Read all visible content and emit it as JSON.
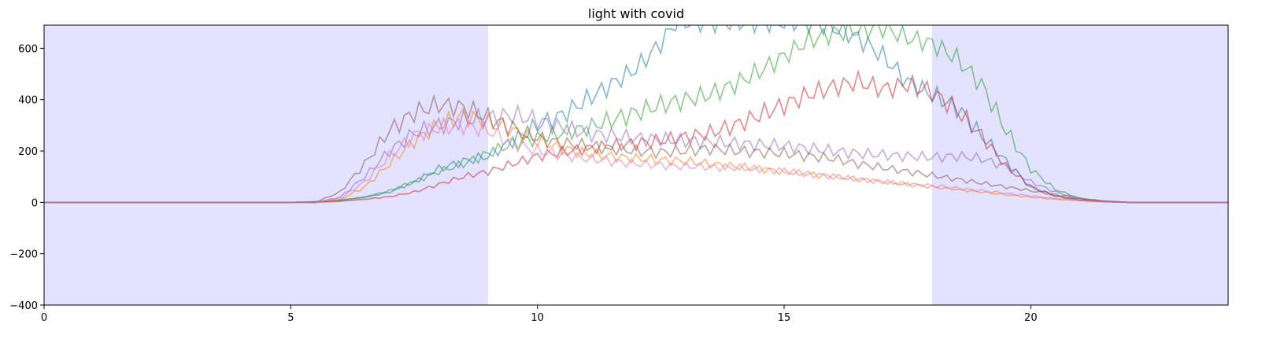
{
  "chart_data": {
    "type": "line",
    "title": "light with covid",
    "xlabel": "",
    "ylabel": "",
    "xlim": [
      0,
      24
    ],
    "ylim": [
      -400,
      690
    ],
    "xticks": [
      0,
      5,
      10,
      15,
      20
    ],
    "yticks": [
      -400,
      -200,
      0,
      200,
      400,
      600
    ],
    "grid": false,
    "legend": "none",
    "shaded_regions": [
      {
        "x0": 0,
        "x1": 9,
        "color": "#e3e3ff"
      },
      {
        "x0": 18,
        "x1": 24,
        "color": "#e3e3ff"
      }
    ],
    "series": [
      {
        "color": "#1f77b4",
        "points": [
          [
            0,
            0
          ],
          [
            5,
            0
          ],
          [
            5.6,
            3
          ],
          [
            6,
            8
          ],
          [
            6.5,
            20
          ],
          [
            7,
            40
          ],
          [
            7.5,
            80
          ],
          [
            8,
            130
          ],
          [
            8.5,
            160
          ],
          [
            9,
            180
          ],
          [
            9.5,
            240
          ],
          [
            10,
            300
          ],
          [
            10.5,
            340
          ],
          [
            11,
            400
          ],
          [
            11.5,
            460
          ],
          [
            12,
            520
          ],
          [
            12.5,
            620
          ],
          [
            12.8,
            700
          ],
          [
            13,
            700
          ],
          [
            15.5,
            700
          ],
          [
            16,
            680
          ],
          [
            16.5,
            640
          ],
          [
            17,
            570
          ],
          [
            17.5,
            470
          ],
          [
            18,
            420
          ],
          [
            18.5,
            370
          ],
          [
            19,
            260
          ],
          [
            19.5,
            160
          ],
          [
            20,
            60
          ],
          [
            20.5,
            25
          ],
          [
            21,
            10
          ],
          [
            21.5,
            3
          ],
          [
            22,
            0
          ],
          [
            24,
            0
          ]
        ]
      },
      {
        "color": "#ff7f0e",
        "points": [
          [
            0,
            0
          ],
          [
            5.5,
            0
          ],
          [
            6,
            10
          ],
          [
            6.5,
            60
          ],
          [
            7,
            150
          ],
          [
            7.5,
            240
          ],
          [
            8,
            300
          ],
          [
            8.5,
            340
          ],
          [
            9,
            310
          ],
          [
            9.5,
            280
          ],
          [
            10,
            240
          ],
          [
            10.5,
            210
          ],
          [
            11,
            190
          ],
          [
            11.5,
            180
          ],
          [
            12,
            170
          ],
          [
            12.5,
            165
          ],
          [
            13,
            160
          ],
          [
            13.5,
            150
          ],
          [
            14,
            140
          ],
          [
            14.5,
            130
          ],
          [
            15,
            120
          ],
          [
            15.5,
            110
          ],
          [
            16,
            100
          ],
          [
            16.5,
            90
          ],
          [
            17,
            80
          ],
          [
            17.5,
            70
          ],
          [
            18,
            60
          ],
          [
            18.5,
            50
          ],
          [
            19,
            40
          ],
          [
            19.5,
            30
          ],
          [
            20,
            20
          ],
          [
            20.5,
            12
          ],
          [
            21,
            6
          ],
          [
            21.5,
            2
          ],
          [
            22,
            0
          ],
          [
            24,
            0
          ]
        ]
      },
      {
        "color": "#2ca02c",
        "points": [
          [
            0,
            0
          ],
          [
            5,
            0
          ],
          [
            5.6,
            3
          ],
          [
            6,
            8
          ],
          [
            6.5,
            20
          ],
          [
            7,
            45
          ],
          [
            7.5,
            80
          ],
          [
            8,
            120
          ],
          [
            8.5,
            150
          ],
          [
            9,
            190
          ],
          [
            9.5,
            230
          ],
          [
            10,
            250
          ],
          [
            10.5,
            270
          ],
          [
            11,
            290
          ],
          [
            11.5,
            320
          ],
          [
            12,
            350
          ],
          [
            12.5,
            380
          ],
          [
            13,
            400
          ],
          [
            13.5,
            420
          ],
          [
            14,
            460
          ],
          [
            14.5,
            510
          ],
          [
            15,
            570
          ],
          [
            15.5,
            630
          ],
          [
            16,
            660
          ],
          [
            16.5,
            670
          ],
          [
            17,
            680
          ],
          [
            17.5,
            640
          ],
          [
            18,
            620
          ],
          [
            18.5,
            560
          ],
          [
            19,
            460
          ],
          [
            19.5,
            280
          ],
          [
            20,
            130
          ],
          [
            20.5,
            50
          ],
          [
            21,
            15
          ],
          [
            21.5,
            4
          ],
          [
            22,
            0
          ],
          [
            24,
            0
          ]
        ]
      },
      {
        "color": "#d62728",
        "points": [
          [
            0,
            0
          ],
          [
            5.5,
            0
          ],
          [
            6,
            4
          ],
          [
            6.5,
            12
          ],
          [
            7,
            22
          ],
          [
            7.5,
            40
          ],
          [
            8,
            70
          ],
          [
            8.5,
            100
          ],
          [
            9,
            120
          ],
          [
            9.5,
            150
          ],
          [
            10,
            180
          ],
          [
            10.5,
            195
          ],
          [
            11,
            210
          ],
          [
            11.5,
            220
          ],
          [
            12,
            230
          ],
          [
            12.5,
            240
          ],
          [
            13,
            255
          ],
          [
            13.5,
            270
          ],
          [
            14,
            300
          ],
          [
            14.5,
            340
          ],
          [
            15,
            380
          ],
          [
            15.5,
            420
          ],
          [
            16,
            450
          ],
          [
            16.5,
            470
          ],
          [
            17,
            440
          ],
          [
            17.5,
            460
          ],
          [
            18,
            430
          ],
          [
            18.5,
            360
          ],
          [
            19,
            260
          ],
          [
            19.5,
            140
          ],
          [
            20,
            60
          ],
          [
            20.5,
            25
          ],
          [
            21,
            8
          ],
          [
            21.5,
            2
          ],
          [
            22,
            0
          ],
          [
            24,
            0
          ]
        ]
      },
      {
        "color": "#9467bd",
        "points": [
          [
            0,
            0
          ],
          [
            5.5,
            0
          ],
          [
            6,
            20
          ],
          [
            6.5,
            100
          ],
          [
            7,
            200
          ],
          [
            7.5,
            270
          ],
          [
            8,
            300
          ],
          [
            8.5,
            320
          ],
          [
            9,
            330
          ],
          [
            9.5,
            340
          ],
          [
            10,
            320
          ],
          [
            10.5,
            290
          ],
          [
            11,
            270
          ],
          [
            11.5,
            260
          ],
          [
            12,
            250
          ],
          [
            12.5,
            245
          ],
          [
            13,
            240
          ],
          [
            13.5,
            235
          ],
          [
            14,
            230
          ],
          [
            14.5,
            225
          ],
          [
            15,
            220
          ],
          [
            15.5,
            210
          ],
          [
            16,
            200
          ],
          [
            16.5,
            190
          ],
          [
            17,
            185
          ],
          [
            17.5,
            180
          ],
          [
            18,
            175
          ],
          [
            18.5,
            180
          ],
          [
            19,
            170
          ],
          [
            19.5,
            140
          ],
          [
            20,
            80
          ],
          [
            20.5,
            40
          ],
          [
            21,
            15
          ],
          [
            21.5,
            4
          ],
          [
            22,
            0
          ],
          [
            24,
            0
          ]
        ]
      },
      {
        "color": "#8c564b",
        "points": [
          [
            0,
            0
          ],
          [
            5.5,
            0
          ],
          [
            6,
            40
          ],
          [
            6.5,
            150
          ],
          [
            7,
            280
          ],
          [
            7.5,
            350
          ],
          [
            8,
            380
          ],
          [
            8.5,
            370
          ],
          [
            9,
            330
          ],
          [
            9.5,
            290
          ],
          [
            10,
            250
          ],
          [
            10.5,
            230
          ],
          [
            11,
            220
          ],
          [
            11.5,
            210
          ],
          [
            12,
            200
          ],
          [
            12.5,
            195
          ],
          [
            13,
            200
          ],
          [
            13.5,
            210
          ],
          [
            14,
            200
          ],
          [
            14.5,
            195
          ],
          [
            15,
            190
          ],
          [
            15.5,
            180
          ],
          [
            16,
            170
          ],
          [
            16.5,
            150
          ],
          [
            17,
            135
          ],
          [
            17.5,
            120
          ],
          [
            18,
            105
          ],
          [
            18.5,
            90
          ],
          [
            19,
            75
          ],
          [
            19.5,
            60
          ],
          [
            20,
            45
          ],
          [
            20.5,
            30
          ],
          [
            21,
            15
          ],
          [
            21.5,
            5
          ],
          [
            22,
            0
          ],
          [
            24,
            0
          ]
        ]
      },
      {
        "color": "#e377c2",
        "points": [
          [
            0,
            0
          ],
          [
            5.5,
            0
          ],
          [
            6,
            15
          ],
          [
            6.5,
            80
          ],
          [
            7,
            180
          ],
          [
            7.5,
            260
          ],
          [
            8,
            290
          ],
          [
            8.5,
            300
          ],
          [
            9,
            280
          ],
          [
            9.5,
            230
          ],
          [
            10,
            200
          ],
          [
            10.5,
            185
          ],
          [
            11,
            170
          ],
          [
            11.5,
            160
          ],
          [
            12,
            150
          ],
          [
            12.5,
            145
          ],
          [
            13,
            140
          ],
          [
            13.5,
            138
          ],
          [
            14,
            135
          ],
          [
            14.5,
            130
          ],
          [
            15,
            120
          ],
          [
            15.5,
            110
          ],
          [
            16,
            100
          ],
          [
            16.5,
            90
          ],
          [
            17,
            80
          ],
          [
            17.5,
            72
          ],
          [
            18,
            65
          ],
          [
            18.5,
            55
          ],
          [
            19,
            45
          ],
          [
            19.5,
            35
          ],
          [
            20,
            25
          ],
          [
            20.5,
            15
          ],
          [
            21,
            8
          ],
          [
            21.5,
            2
          ],
          [
            22,
            0
          ],
          [
            24,
            0
          ]
        ]
      }
    ]
  }
}
